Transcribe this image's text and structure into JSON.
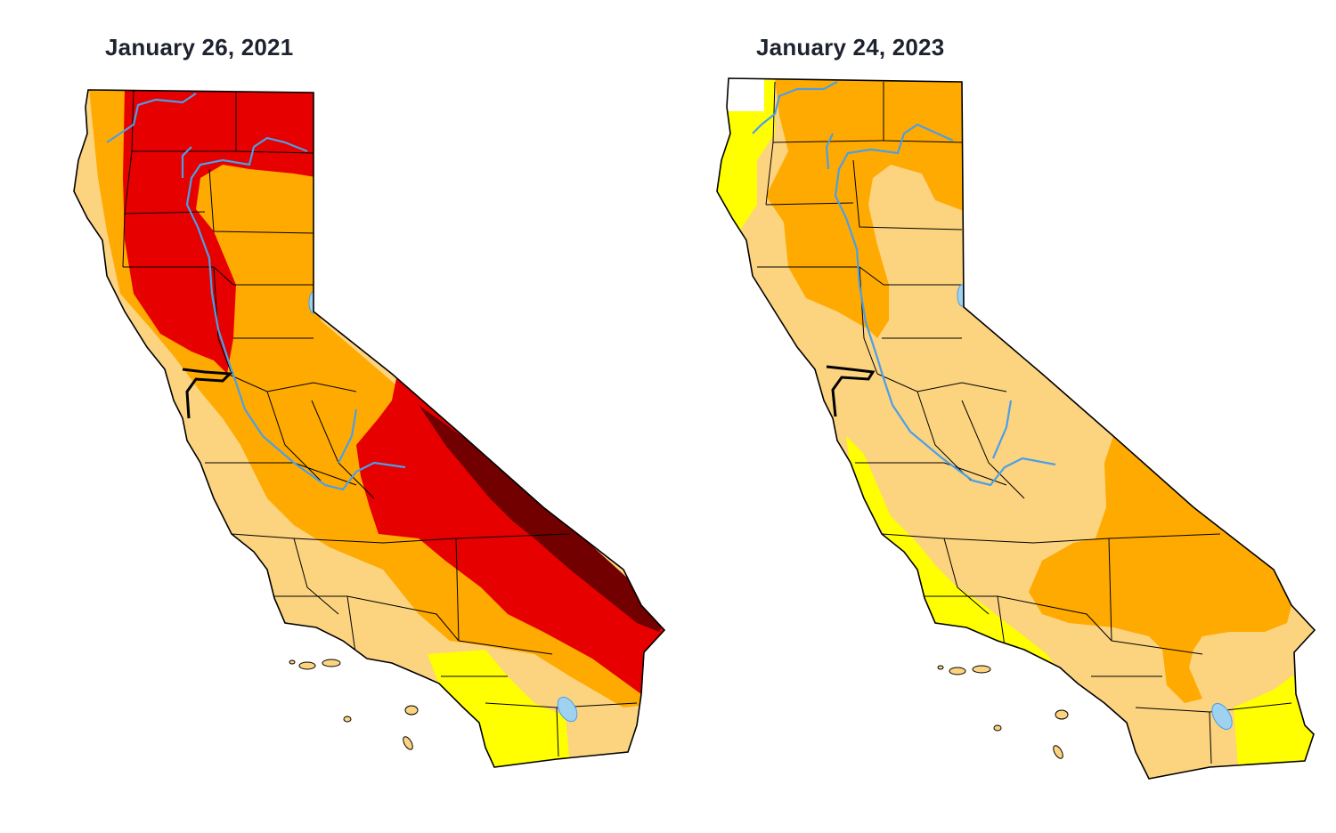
{
  "maps": [
    {
      "title": "January 26, 2021"
    },
    {
      "title": "January 24, 2023"
    }
  ],
  "drought_category_colors": {
    "none": "#ffffff",
    "D0_abnormally_dry": "#ffff00",
    "D1_moderate": "#fcd37f",
    "D2_severe": "#ffaa00",
    "D3_extreme": "#e60000",
    "D4_exceptional": "#730000"
  },
  "water_color": "#4a9fe8",
  "lake_color": "#9fd1f0",
  "border_color": "#000000"
}
